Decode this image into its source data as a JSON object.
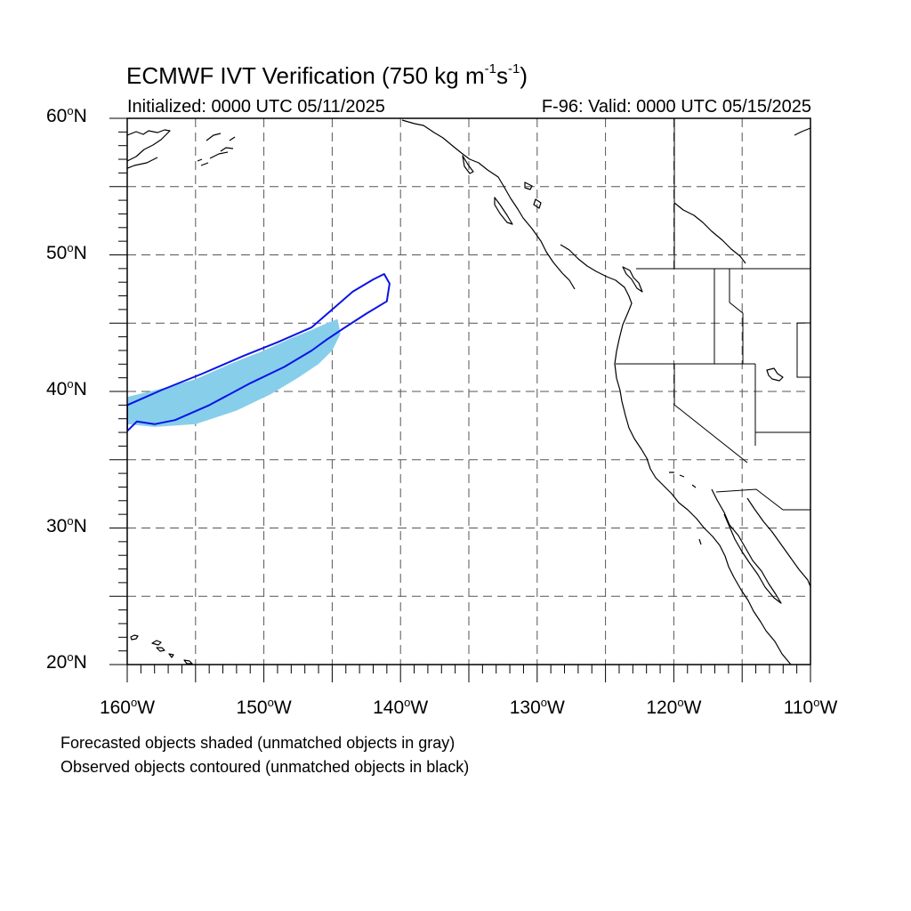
{
  "title": {
    "prefix": "ECMWF IVT Verification (750 kg m",
    "exp1": "-1",
    "mid": "s",
    "exp2": "-1",
    "suffix": ")"
  },
  "initialized": "Initialized: 0000 UTC 05/11/2025",
  "valid": "F-96: Valid: 0000 UTC 05/15/2025",
  "latitude_labels": [
    {
      "value": 60,
      "text": "60",
      "suffix": "N"
    },
    {
      "value": 50,
      "text": "50",
      "suffix": "N"
    },
    {
      "value": 40,
      "text": "40",
      "suffix": "N"
    },
    {
      "value": 30,
      "text": "30",
      "suffix": "N"
    },
    {
      "value": 20,
      "text": "20",
      "suffix": "N"
    }
  ],
  "longitude_labels": [
    {
      "value": -160,
      "text": "160",
      "suffix": "W"
    },
    {
      "value": -150,
      "text": "150",
      "suffix": "W"
    },
    {
      "value": -140,
      "text": "140",
      "suffix": "W"
    },
    {
      "value": -130,
      "text": "130",
      "suffix": "W"
    },
    {
      "value": -120,
      "text": "120",
      "suffix": "W"
    },
    {
      "value": -110,
      "text": "110",
      "suffix": "W"
    }
  ],
  "notes": {
    "forecast": "Forecasted objects shaded (unmatched objects in gray)",
    "observed": "Observed objects contoured (unmatched objects in black)"
  },
  "map_extent": {
    "lon_min": -160,
    "lon_max": -110,
    "lat_min": 20,
    "lat_max": 60
  },
  "gridlines": {
    "lon_step": 5,
    "lat_step": 5,
    "style": "dashed"
  },
  "colors": {
    "forecast_fill": "#87ceeb",
    "observed_contour": "#0a14e6",
    "coast": "#000000",
    "grid": "#555555"
  },
  "forecast_object": {
    "name": "forecast",
    "points": [
      [
        -160.0,
        37.6
      ],
      [
        -158.0,
        37.4
      ],
      [
        -155.0,
        37.6
      ],
      [
        -152.0,
        38.6
      ],
      [
        -149.5,
        39.8
      ],
      [
        -147.5,
        41.0
      ],
      [
        -146.0,
        42.0
      ],
      [
        -145.0,
        43.0
      ],
      [
        -144.4,
        44.2
      ],
      [
        -144.6,
        45.3
      ],
      [
        -145.4,
        45.0
      ],
      [
        -146.5,
        44.5
      ],
      [
        -148.0,
        43.9
      ],
      [
        -150.0,
        43.0
      ],
      [
        -152.5,
        42.0
      ],
      [
        -155.0,
        40.9
      ],
      [
        -157.5,
        40.2
      ],
      [
        -160.0,
        39.6
      ]
    ]
  },
  "observed_object": {
    "name": "observed",
    "points": [
      [
        -160.0,
        39.0
      ],
      [
        -157.5,
        40.1
      ],
      [
        -154.5,
        41.3
      ],
      [
        -151.5,
        42.6
      ],
      [
        -149.0,
        43.6
      ],
      [
        -146.5,
        44.7
      ],
      [
        -145.0,
        46.0
      ],
      [
        -143.5,
        47.3
      ],
      [
        -142.0,
        48.2
      ],
      [
        -141.2,
        48.6
      ],
      [
        -140.8,
        47.9
      ],
      [
        -141.0,
        46.6
      ],
      [
        -142.5,
        45.7
      ],
      [
        -144.2,
        44.6
      ],
      [
        -145.4,
        43.8
      ],
      [
        -146.5,
        43.0
      ],
      [
        -148.5,
        41.8
      ],
      [
        -151.0,
        40.6
      ],
      [
        -154.0,
        39.0
      ],
      [
        -156.5,
        37.9
      ],
      [
        -158.0,
        37.6
      ],
      [
        -159.3,
        37.8
      ],
      [
        -160.0,
        37.1
      ]
    ]
  }
}
